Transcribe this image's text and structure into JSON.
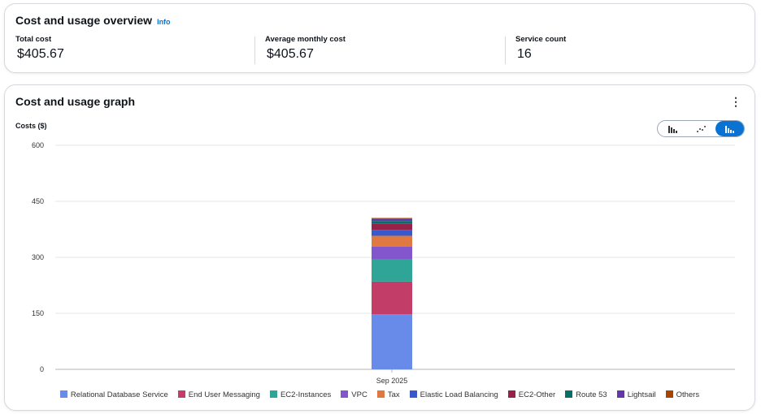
{
  "overview": {
    "title": "Cost and usage overview",
    "info": "Info",
    "metrics": [
      {
        "label": "Total cost",
        "value": "$405.67"
      },
      {
        "label": "Average monthly cost",
        "value": "$405.67"
      },
      {
        "label": "Service count",
        "value": "16"
      }
    ]
  },
  "graph": {
    "title": "Cost and usage graph",
    "more_icon": "⋮",
    "view_icons": [
      "bar-chart-icon",
      "line-chart-icon",
      "stacked-bar-chart-icon"
    ]
  },
  "chart_data": {
    "type": "bar",
    "stacked": true,
    "ylabel": "Costs ($)",
    "xlabel": "",
    "ylim": [
      0,
      600
    ],
    "yticks": [
      0,
      150,
      300,
      450,
      600
    ],
    "categories": [
      "Sep 2025"
    ],
    "legend_position": "bottom",
    "grid": true,
    "series": [
      {
        "name": "Relational Database Service",
        "color": "#688ae8",
        "values": [
          147.2
        ]
      },
      {
        "name": "End User Messaging",
        "color": "#c33d69",
        "values": [
          87.9
        ]
      },
      {
        "name": "EC2-Instances",
        "color": "#2ea597",
        "values": [
          59.6
        ]
      },
      {
        "name": "VPC",
        "color": "#8456ce",
        "values": [
          33.6
        ]
      },
      {
        "name": "Tax",
        "color": "#e07941",
        "values": [
          29.4
        ]
      },
      {
        "name": "Elastic Load Balancing",
        "color": "#3759ce",
        "values": [
          15.8
        ]
      },
      {
        "name": "EC2-Other",
        "color": "#962249",
        "values": [
          17.3
        ]
      },
      {
        "name": "Route 53",
        "color": "#096f64",
        "values": [
          6.5
        ]
      },
      {
        "name": "Lightsail",
        "color": "#6237a7",
        "values": [
          5.2
        ]
      },
      {
        "name": "Others",
        "color": "#a84401",
        "values": [
          2.9
        ]
      }
    ]
  }
}
